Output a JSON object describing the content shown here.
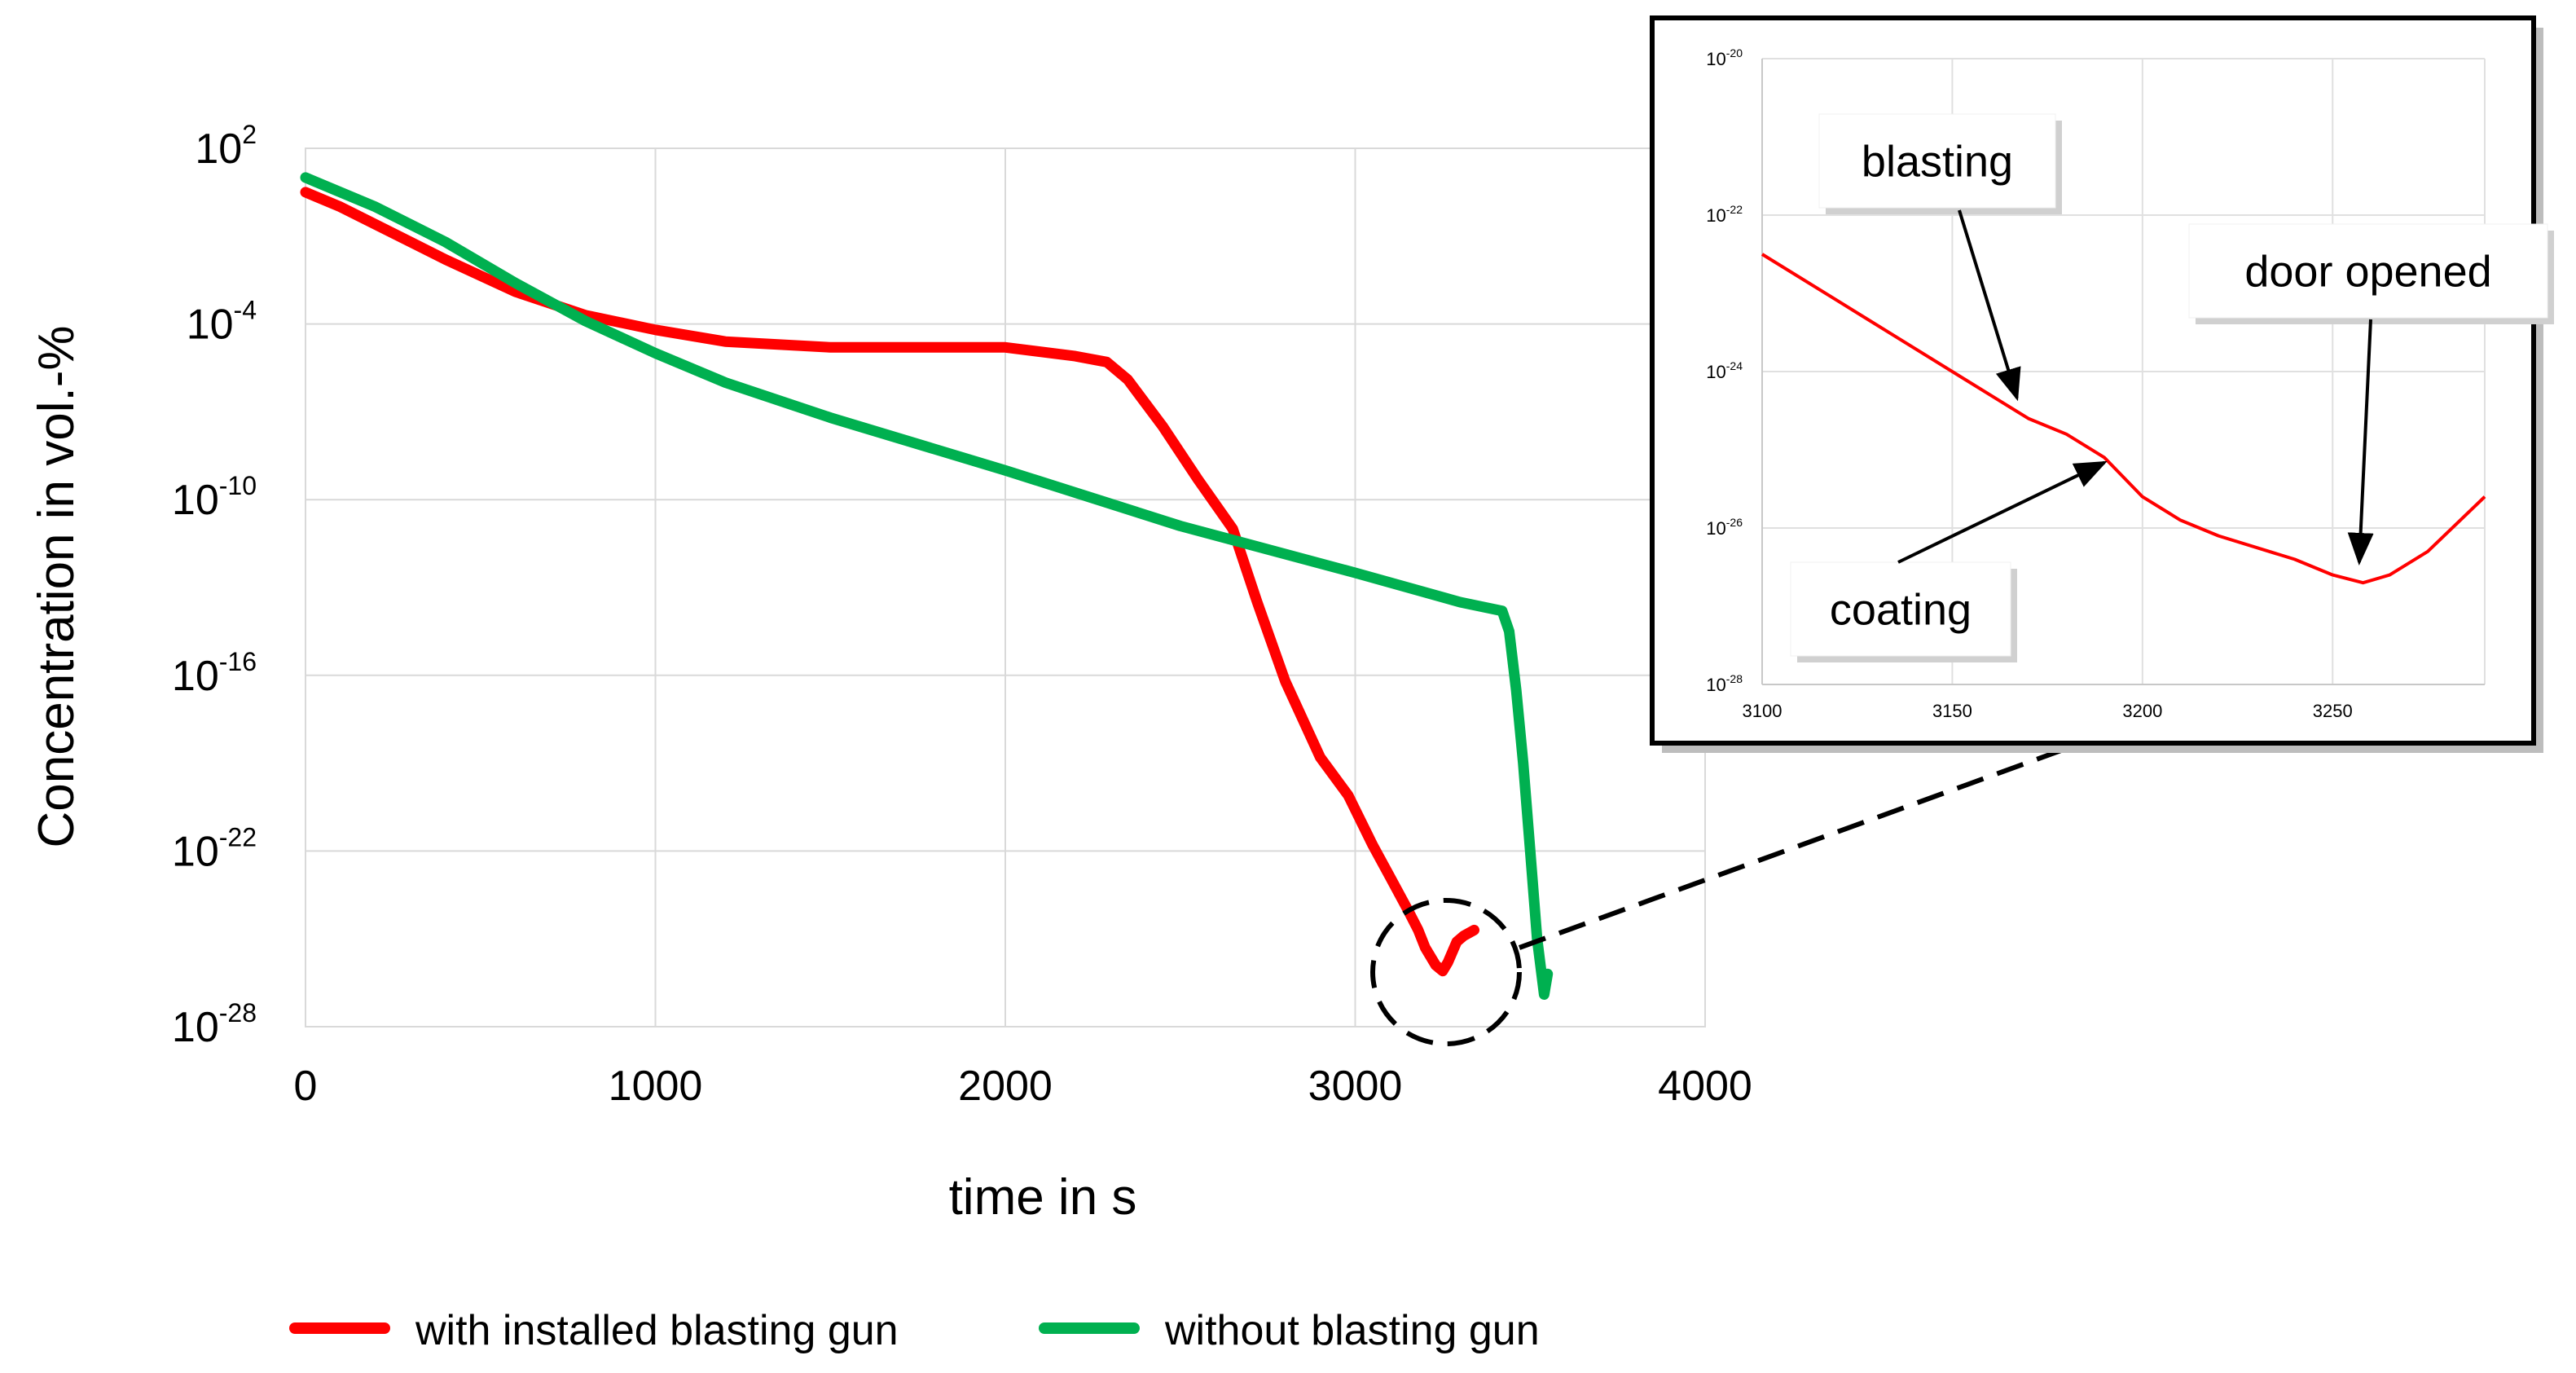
{
  "chart_data": [
    {
      "type": "line",
      "name": "main",
      "xlabel": "time in s",
      "ylabel": "Concentration in vol.-%",
      "xlim": [
        0,
        4000
      ],
      "ylim_exp": [
        -28,
        2
      ],
      "y_scale": "log",
      "x_ticks": [
        {
          "value": 0,
          "label": "0"
        },
        {
          "value": 1000,
          "label": "1000"
        },
        {
          "value": 2000,
          "label": "2000"
        },
        {
          "value": 3000,
          "label": "3000"
        },
        {
          "value": 4000,
          "label": "4000"
        }
      ],
      "y_ticks": [
        {
          "exp": 2,
          "base": "10",
          "sup": "2"
        },
        {
          "exp": -4,
          "base": "10",
          "sup": "-4"
        },
        {
          "exp": -10,
          "base": "10",
          "sup": "-10"
        },
        {
          "exp": -16,
          "base": "10",
          "sup": "-16"
        },
        {
          "exp": -22,
          "base": "10",
          "sup": "-22"
        },
        {
          "exp": -28,
          "base": "10",
          "sup": "-28"
        }
      ],
      "grid": true,
      "series": [
        {
          "name": "with installed blasting gun",
          "color": "#ff0000",
          "x": [
            0,
            100,
            200,
            400,
            600,
            800,
            1000,
            1200,
            1500,
            1800,
            2000,
            2200,
            2290,
            2350,
            2450,
            2550,
            2650,
            2720,
            2800,
            2900,
            2980,
            3050,
            3100,
            3150,
            3180,
            3200,
            3230,
            3250,
            3265,
            3290,
            3310,
            3340
          ],
          "y_exp": [
            0.5,
            0.0,
            -0.6,
            -1.8,
            -2.9,
            -3.7,
            -4.2,
            -4.6,
            -4.8,
            -4.8,
            -4.8,
            -5.1,
            -5.3,
            -5.9,
            -7.5,
            -9.3,
            -11.0,
            -13.5,
            -16.2,
            -18.8,
            -20.1,
            -21.8,
            -22.9,
            -24.0,
            -24.7,
            -25.3,
            -25.9,
            -26.1,
            -25.8,
            -25.1,
            -24.9,
            -24.7
          ]
        },
        {
          "name": "without blasting gun",
          "color": "#00b050",
          "x": [
            0,
            200,
            400,
            600,
            800,
            1000,
            1200,
            1500,
            2000,
            2500,
            3000,
            3300,
            3420,
            3440,
            3460,
            3480,
            3500,
            3520,
            3540,
            3550
          ],
          "y_exp": [
            1.0,
            0.0,
            -1.2,
            -2.6,
            -3.9,
            -5.0,
            -6.0,
            -7.2,
            -9.0,
            -10.9,
            -12.5,
            -13.5,
            -13.8,
            -14.5,
            -16.5,
            -19.0,
            -22.0,
            -25.0,
            -26.9,
            -26.2
          ]
        }
      ],
      "legend": "bottom-center"
    },
    {
      "type": "line",
      "name": "inset",
      "xlim": [
        3100,
        3290
      ],
      "ylim_exp": [
        -28,
        -20
      ],
      "y_scale": "log",
      "x_ticks": [
        {
          "value": 3100,
          "label": "3100"
        },
        {
          "value": 3150,
          "label": "3150"
        },
        {
          "value": 3200,
          "label": "3200"
        },
        {
          "value": 3250,
          "label": "3250"
        }
      ],
      "y_ticks": [
        {
          "exp": -20,
          "base": "10",
          "sup": "-20"
        },
        {
          "exp": -22,
          "base": "10",
          "sup": "-22"
        },
        {
          "exp": -24,
          "base": "10",
          "sup": "-24"
        },
        {
          "exp": -26,
          "base": "10",
          "sup": "-26"
        },
        {
          "exp": -28,
          "base": "10",
          "sup": "-28"
        }
      ],
      "grid": true,
      "series": [
        {
          "name": "with installed blasting gun",
          "color": "#ff0000",
          "x": [
            3100,
            3120,
            3140,
            3160,
            3170,
            3180,
            3190,
            3200,
            3210,
            3220,
            3240,
            3250,
            3258,
            3265,
            3275,
            3290
          ],
          "y_exp": [
            -22.5,
            -23.1,
            -23.7,
            -24.3,
            -24.6,
            -24.8,
            -25.1,
            -25.6,
            -25.9,
            -26.1,
            -26.4,
            -26.6,
            -26.7,
            -26.6,
            -26.3,
            -25.6
          ]
        }
      ],
      "annotations": [
        {
          "text": "blasting",
          "x": 3167,
          "y_exp": -24.4
        },
        {
          "text": "coating",
          "x": 3190,
          "y_exp": -25.1
        },
        {
          "text": "door opened",
          "x": 3257,
          "y_exp": -26.5
        }
      ]
    }
  ],
  "legend": {
    "items": [
      {
        "label": "with installed blasting gun",
        "color": "#ff0000"
      },
      {
        "label": "without blasting gun",
        "color": "#00b050"
      }
    ]
  }
}
